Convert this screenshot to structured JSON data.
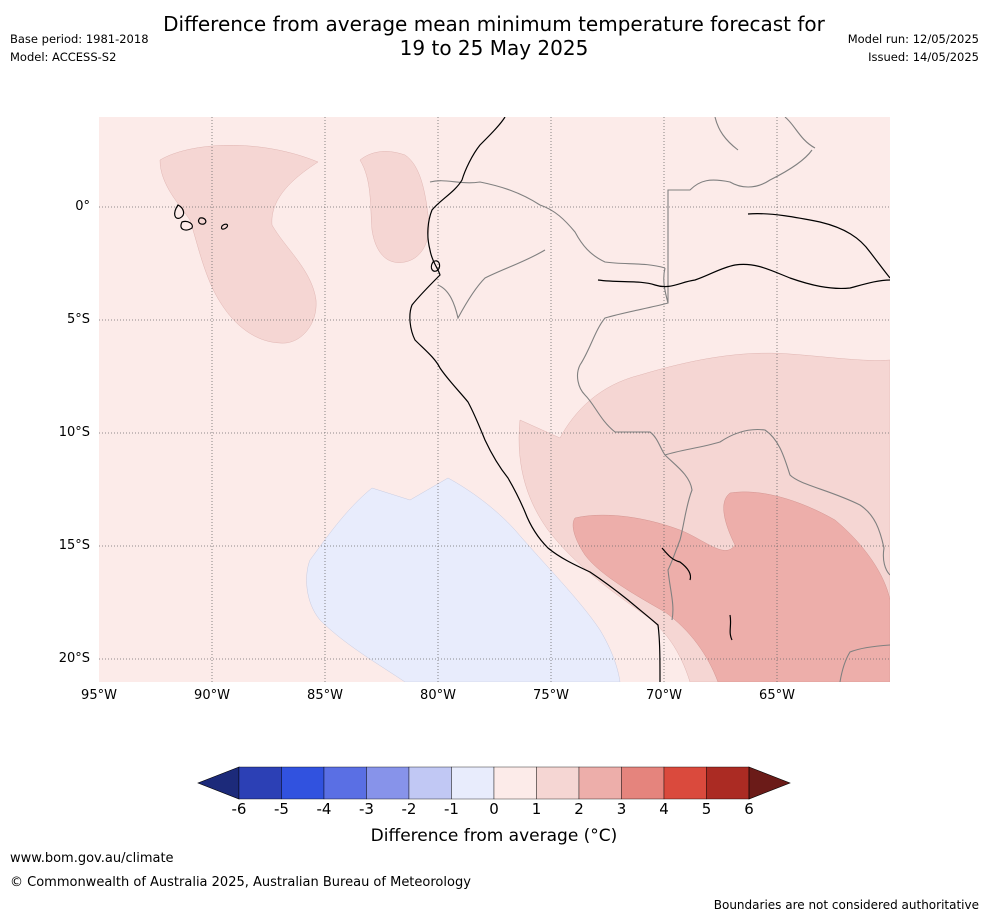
{
  "header": {
    "title_line1": "Difference from average mean minimum temperature forecast for",
    "title_line2": "19 to 25 May 2025",
    "base_period": "Base period: 1981-2018",
    "model": "Model: ACCESS-S2",
    "model_run": "Model run: 12/05/2025",
    "issued": "Issued: 14/05/2025"
  },
  "map": {
    "lat_labels": [
      "0°",
      "5°S",
      "10°S",
      "15°S",
      "20°S"
    ],
    "lon_labels": [
      "95°W",
      "90°W",
      "85°W",
      "80°W",
      "75°W",
      "70°W",
      "65°W"
    ],
    "colors": {
      "background_anom": "#fcebe9",
      "anom_1_2": "#f5d6d3",
      "anom_2_3": "#edaeaa",
      "anom_neg": "#e8ecfc"
    }
  },
  "colorbar": {
    "ticks": [
      "-6",
      "-5",
      "-4",
      "-3",
      "-2",
      "-1",
      "0",
      "1",
      "2",
      "3",
      "4",
      "5",
      "6"
    ],
    "colors": [
      "#1c2a7a",
      "#2c40b5",
      "#3152df",
      "#5a6fe4",
      "#8793ea",
      "#c1c8f4",
      "#e8ecfc",
      "#fcebe9",
      "#f5d6d3",
      "#edaeaa",
      "#e5847d",
      "#da4a3d",
      "#ab2b23",
      "#6b1b18"
    ],
    "label": "Difference from average (°C)"
  },
  "footer": {
    "url": "www.bom.gov.au/climate",
    "copyright": "© Commonwealth of Australia 2025, Australian Bureau of Meteorology",
    "disclaimer": "Boundaries are not considered authoritative"
  }
}
